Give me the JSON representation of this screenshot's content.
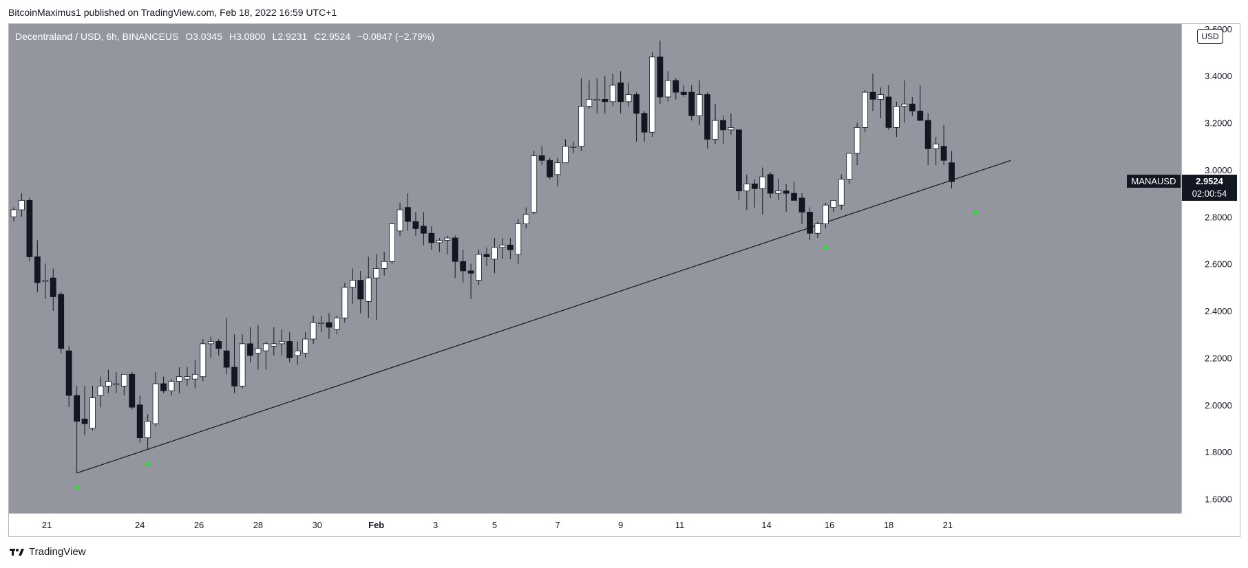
{
  "header": {
    "published_by": "BitcoinMaximus1 published on TradingView.com, Feb 18, 2022 16:59 UTC+1"
  },
  "legend": {
    "symbol": "Decentraland / USD, 6h, BINANCEUS",
    "open_label": "O",
    "open": "3.0345",
    "high_label": "H",
    "high": "3.0800",
    "low_label": "L",
    "low": "2.9231",
    "close_label": "C",
    "close": "2.9524",
    "change": "−0.0847 (−2.79%)"
  },
  "currency": "USD",
  "price_tag": {
    "ticker": "MANAUSD",
    "price": "2.9524",
    "countdown": "02:00:54"
  },
  "footer": {
    "brand": "TradingView",
    "logo_icon": "tradingview-logo-icon"
  },
  "colors": {
    "background": "#93969f",
    "up_body": "#ffffff",
    "down_body": "#131722",
    "wick": "#131722",
    "trendline": "#131722",
    "marker": "#35d23a",
    "tag": "#131722"
  },
  "chart_data": {
    "type": "candlestick",
    "title": "Decentraland / USD, 6h, BINANCEUS",
    "ylim": [
      1.54,
      3.62
    ],
    "y_ticks": [
      "1.6000",
      "1.8000",
      "2.0000",
      "2.2000",
      "2.4000",
      "2.6000",
      "2.8000",
      "3.0000",
      "3.2000",
      "3.4000",
      "3.6000"
    ],
    "x_ticks": [
      "21",
      "24",
      "26",
      "28",
      "30",
      "Feb",
      "3",
      "5",
      "7",
      "9",
      "11",
      "14",
      "16",
      "18",
      "21"
    ],
    "grid": false,
    "candles": [
      {
        "o": 2.8,
        "h": 2.84,
        "l": 2.78,
        "c": 2.83
      },
      {
        "o": 2.83,
        "h": 2.9,
        "l": 2.8,
        "c": 2.87
      },
      {
        "o": 2.87,
        "h": 2.88,
        "l": 2.61,
        "c": 2.63
      },
      {
        "o": 2.63,
        "h": 2.7,
        "l": 2.48,
        "c": 2.52
      },
      {
        "o": 2.53,
        "h": 2.6,
        "l": 2.45,
        "c": 2.53
      },
      {
        "o": 2.54,
        "h": 2.58,
        "l": 2.4,
        "c": 2.46
      },
      {
        "o": 2.47,
        "h": 2.48,
        "l": 2.22,
        "c": 2.24
      },
      {
        "o": 2.23,
        "h": 2.25,
        "l": 1.99,
        "c": 2.04
      },
      {
        "o": 2.04,
        "h": 2.08,
        "l": 1.71,
        "c": 1.93
      },
      {
        "o": 1.94,
        "h": 2.08,
        "l": 1.87,
        "c": 1.92
      },
      {
        "o": 1.9,
        "h": 2.08,
        "l": 1.89,
        "c": 2.03
      },
      {
        "o": 2.04,
        "h": 2.12,
        "l": 1.99,
        "c": 2.08
      },
      {
        "o": 2.08,
        "h": 2.15,
        "l": 2.05,
        "c": 2.1
      },
      {
        "o": 2.09,
        "h": 2.14,
        "l": 2.05,
        "c": 2.09
      },
      {
        "o": 2.08,
        "h": 2.13,
        "l": 2.04,
        "c": 2.13
      },
      {
        "o": 2.13,
        "h": 2.14,
        "l": 1.98,
        "c": 1.99
      },
      {
        "o": 2.0,
        "h": 2.04,
        "l": 1.84,
        "c": 1.86
      },
      {
        "o": 1.86,
        "h": 1.96,
        "l": 1.81,
        "c": 1.93
      },
      {
        "o": 1.92,
        "h": 2.14,
        "l": 1.91,
        "c": 2.09
      },
      {
        "o": 2.09,
        "h": 2.12,
        "l": 2.05,
        "c": 2.06
      },
      {
        "o": 2.06,
        "h": 2.11,
        "l": 2.04,
        "c": 2.1
      },
      {
        "o": 2.1,
        "h": 2.16,
        "l": 2.05,
        "c": 2.12
      },
      {
        "o": 2.11,
        "h": 2.16,
        "l": 2.08,
        "c": 2.12
      },
      {
        "o": 2.11,
        "h": 2.19,
        "l": 2.07,
        "c": 2.13
      },
      {
        "o": 2.12,
        "h": 2.28,
        "l": 2.1,
        "c": 2.26
      },
      {
        "o": 2.26,
        "h": 2.29,
        "l": 2.2,
        "c": 2.27
      },
      {
        "o": 2.27,
        "h": 2.28,
        "l": 2.21,
        "c": 2.24
      },
      {
        "o": 2.23,
        "h": 2.37,
        "l": 2.13,
        "c": 2.16
      },
      {
        "o": 2.16,
        "h": 2.3,
        "l": 2.05,
        "c": 2.08
      },
      {
        "o": 2.08,
        "h": 2.3,
        "l": 2.07,
        "c": 2.26
      },
      {
        "o": 2.26,
        "h": 2.33,
        "l": 2.18,
        "c": 2.21
      },
      {
        "o": 2.22,
        "h": 2.34,
        "l": 2.15,
        "c": 2.24
      },
      {
        "o": 2.23,
        "h": 2.27,
        "l": 2.15,
        "c": 2.26
      },
      {
        "o": 2.25,
        "h": 2.33,
        "l": 2.21,
        "c": 2.26
      },
      {
        "o": 2.26,
        "h": 2.32,
        "l": 2.21,
        "c": 2.27
      },
      {
        "o": 2.27,
        "h": 2.31,
        "l": 2.18,
        "c": 2.2
      },
      {
        "o": 2.21,
        "h": 2.27,
        "l": 2.17,
        "c": 2.23
      },
      {
        "o": 2.22,
        "h": 2.31,
        "l": 2.2,
        "c": 2.28
      },
      {
        "o": 2.28,
        "h": 2.38,
        "l": 2.26,
        "c": 2.35
      },
      {
        "o": 2.35,
        "h": 2.38,
        "l": 2.31,
        "c": 2.35
      },
      {
        "o": 2.35,
        "h": 2.39,
        "l": 2.28,
        "c": 2.33
      },
      {
        "o": 2.32,
        "h": 2.38,
        "l": 2.3,
        "c": 2.37
      },
      {
        "o": 2.37,
        "h": 2.52,
        "l": 2.35,
        "c": 2.5
      },
      {
        "o": 2.5,
        "h": 2.58,
        "l": 2.43,
        "c": 2.53
      },
      {
        "o": 2.53,
        "h": 2.57,
        "l": 2.39,
        "c": 2.45
      },
      {
        "o": 2.44,
        "h": 2.63,
        "l": 2.37,
        "c": 2.54
      },
      {
        "o": 2.54,
        "h": 2.64,
        "l": 2.36,
        "c": 2.58
      },
      {
        "o": 2.58,
        "h": 2.65,
        "l": 2.55,
        "c": 2.61
      },
      {
        "o": 2.61,
        "h": 2.76,
        "l": 2.6,
        "c": 2.77
      },
      {
        "o": 2.74,
        "h": 2.86,
        "l": 2.72,
        "c": 2.83
      },
      {
        "o": 2.84,
        "h": 2.9,
        "l": 2.74,
        "c": 2.78
      },
      {
        "o": 2.78,
        "h": 2.82,
        "l": 2.72,
        "c": 2.75
      },
      {
        "o": 2.76,
        "h": 2.82,
        "l": 2.68,
        "c": 2.73
      },
      {
        "o": 2.73,
        "h": 2.76,
        "l": 2.66,
        "c": 2.69
      },
      {
        "o": 2.69,
        "h": 2.71,
        "l": 2.65,
        "c": 2.7
      },
      {
        "o": 2.7,
        "h": 2.72,
        "l": 2.64,
        "c": 2.71
      },
      {
        "o": 2.71,
        "h": 2.72,
        "l": 2.54,
        "c": 2.61
      },
      {
        "o": 2.61,
        "h": 2.66,
        "l": 2.52,
        "c": 2.57
      },
      {
        "o": 2.57,
        "h": 2.6,
        "l": 2.45,
        "c": 2.56
      },
      {
        "o": 2.53,
        "h": 2.66,
        "l": 2.51,
        "c": 2.64
      },
      {
        "o": 2.64,
        "h": 2.67,
        "l": 2.59,
        "c": 2.63
      },
      {
        "o": 2.62,
        "h": 2.71,
        "l": 2.56,
        "c": 2.67
      },
      {
        "o": 2.67,
        "h": 2.71,
        "l": 2.62,
        "c": 2.68
      },
      {
        "o": 2.68,
        "h": 2.71,
        "l": 2.62,
        "c": 2.66
      },
      {
        "o": 2.64,
        "h": 2.79,
        "l": 2.6,
        "c": 2.77
      },
      {
        "o": 2.77,
        "h": 2.84,
        "l": 2.75,
        "c": 2.81
      },
      {
        "o": 2.82,
        "h": 3.08,
        "l": 2.81,
        "c": 3.06
      },
      {
        "o": 3.06,
        "h": 3.1,
        "l": 3.02,
        "c": 3.04
      },
      {
        "o": 3.04,
        "h": 3.05,
        "l": 2.96,
        "c": 2.97
      },
      {
        "o": 2.98,
        "h": 3.05,
        "l": 2.93,
        "c": 3.03
      },
      {
        "o": 3.03,
        "h": 3.13,
        "l": 3.03,
        "c": 3.1
      },
      {
        "o": 3.1,
        "h": 3.12,
        "l": 3.07,
        "c": 3.1
      },
      {
        "o": 3.1,
        "h": 3.39,
        "l": 3.08,
        "c": 3.27
      },
      {
        "o": 3.27,
        "h": 3.38,
        "l": 3.26,
        "c": 3.3
      },
      {
        "o": 3.3,
        "h": 3.39,
        "l": 3.24,
        "c": 3.3
      },
      {
        "o": 3.3,
        "h": 3.4,
        "l": 3.24,
        "c": 3.29
      },
      {
        "o": 3.29,
        "h": 3.41,
        "l": 3.27,
        "c": 3.36
      },
      {
        "o": 3.37,
        "h": 3.42,
        "l": 3.24,
        "c": 3.29
      },
      {
        "o": 3.29,
        "h": 3.37,
        "l": 3.27,
        "c": 3.32
      },
      {
        "o": 3.32,
        "h": 3.33,
        "l": 3.12,
        "c": 3.24
      },
      {
        "o": 3.24,
        "h": 3.25,
        "l": 3.12,
        "c": 3.16
      },
      {
        "o": 3.16,
        "h": 3.5,
        "l": 3.14,
        "c": 3.48
      },
      {
        "o": 3.48,
        "h": 3.55,
        "l": 3.28,
        "c": 3.31
      },
      {
        "o": 3.31,
        "h": 3.42,
        "l": 3.29,
        "c": 3.38
      },
      {
        "o": 3.38,
        "h": 3.39,
        "l": 3.3,
        "c": 3.33
      },
      {
        "o": 3.33,
        "h": 3.36,
        "l": 3.31,
        "c": 3.32
      },
      {
        "o": 3.33,
        "h": 3.36,
        "l": 3.21,
        "c": 3.23
      },
      {
        "o": 3.23,
        "h": 3.38,
        "l": 3.19,
        "c": 3.32
      },
      {
        "o": 3.32,
        "h": 3.33,
        "l": 3.09,
        "c": 3.13
      },
      {
        "o": 3.13,
        "h": 3.28,
        "l": 3.11,
        "c": 3.21
      },
      {
        "o": 3.21,
        "h": 3.23,
        "l": 3.11,
        "c": 3.17
      },
      {
        "o": 3.17,
        "h": 3.24,
        "l": 3.15,
        "c": 3.18
      },
      {
        "o": 3.17,
        "h": 3.17,
        "l": 2.87,
        "c": 2.91
      },
      {
        "o": 2.91,
        "h": 2.98,
        "l": 2.83,
        "c": 2.94
      },
      {
        "o": 2.94,
        "h": 2.96,
        "l": 2.84,
        "c": 2.92
      },
      {
        "o": 2.92,
        "h": 3.01,
        "l": 2.81,
        "c": 2.97
      },
      {
        "o": 2.98,
        "h": 2.99,
        "l": 2.88,
        "c": 2.9
      },
      {
        "o": 2.9,
        "h": 2.96,
        "l": 2.87,
        "c": 2.91
      },
      {
        "o": 2.91,
        "h": 2.94,
        "l": 2.82,
        "c": 2.9
      },
      {
        "o": 2.9,
        "h": 2.95,
        "l": 2.87,
        "c": 2.87
      },
      {
        "o": 2.88,
        "h": 2.9,
        "l": 2.77,
        "c": 2.82
      },
      {
        "o": 2.82,
        "h": 2.84,
        "l": 2.7,
        "c": 2.73
      },
      {
        "o": 2.73,
        "h": 2.78,
        "l": 2.71,
        "c": 2.77
      },
      {
        "o": 2.77,
        "h": 2.86,
        "l": 2.75,
        "c": 2.85
      },
      {
        "o": 2.84,
        "h": 2.87,
        "l": 2.82,
        "c": 2.87
      },
      {
        "o": 2.85,
        "h": 2.98,
        "l": 2.83,
        "c": 2.96
      },
      {
        "o": 2.96,
        "h": 3.07,
        "l": 2.94,
        "c": 3.07
      },
      {
        "o": 3.07,
        "h": 3.2,
        "l": 3.02,
        "c": 3.18
      },
      {
        "o": 3.18,
        "h": 3.34,
        "l": 3.16,
        "c": 3.33
      },
      {
        "o": 3.33,
        "h": 3.41,
        "l": 3.25,
        "c": 3.3
      },
      {
        "o": 3.3,
        "h": 3.35,
        "l": 3.22,
        "c": 3.32
      },
      {
        "o": 3.31,
        "h": 3.36,
        "l": 3.17,
        "c": 3.18
      },
      {
        "o": 3.18,
        "h": 3.29,
        "l": 3.14,
        "c": 3.27
      },
      {
        "o": 3.27,
        "h": 3.38,
        "l": 3.2,
        "c": 3.28
      },
      {
        "o": 3.28,
        "h": 3.31,
        "l": 3.23,
        "c": 3.25
      },
      {
        "o": 3.25,
        "h": 3.36,
        "l": 3.21,
        "c": 3.21
      },
      {
        "o": 3.21,
        "h": 3.24,
        "l": 3.02,
        "c": 3.09
      },
      {
        "o": 3.09,
        "h": 3.14,
        "l": 3.02,
        "c": 3.11
      },
      {
        "o": 3.1,
        "h": 3.19,
        "l": 3.02,
        "c": 3.04
      },
      {
        "o": 3.03,
        "h": 3.08,
        "l": 2.92,
        "c": 2.95
      }
    ],
    "trendline": {
      "from": {
        "index": 8,
        "y": 1.71
      },
      "to": {
        "index": 126.5,
        "y": 3.04
      }
    },
    "markers": [
      {
        "index": 8,
        "y": 1.65
      },
      {
        "index": 17,
        "y": 1.75
      },
      {
        "index": 103,
        "y": 2.67
      },
      {
        "index": 122,
        "y": 2.82
      }
    ]
  }
}
